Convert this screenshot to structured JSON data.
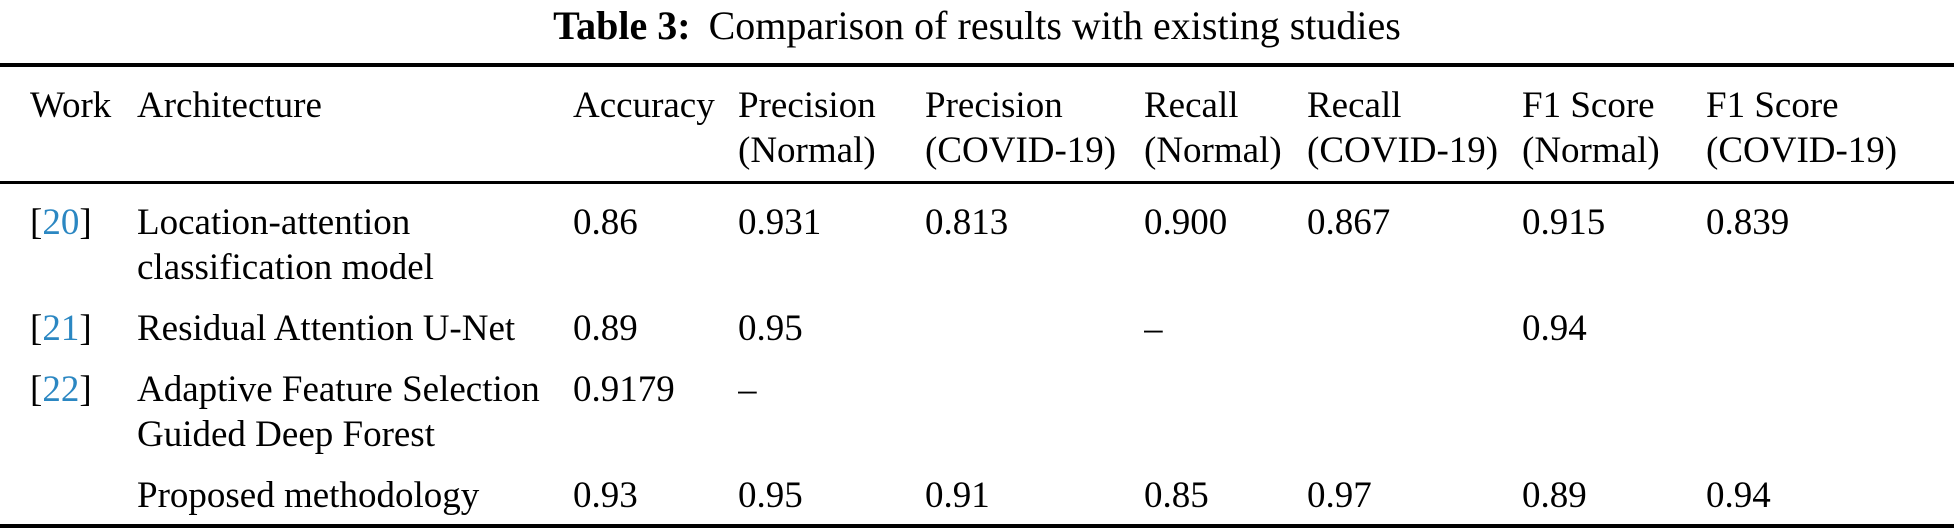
{
  "caption": {
    "label": "Table 3:",
    "text": "Comparison of results with existing studies"
  },
  "colors": {
    "background": "#ffffff",
    "text": "#000000",
    "rule": "#000000",
    "citation_link": "#2b87c2"
  },
  "table": {
    "columns": [
      {
        "label": "Work"
      },
      {
        "label": "Architecture"
      },
      {
        "label": "Accuracy"
      },
      {
        "label": "Precision\n(Normal)"
      },
      {
        "label": "Precision\n(COVID-19)"
      },
      {
        "label": "Recall\n(Normal)"
      },
      {
        "label": "Recall\n(COVID-19)"
      },
      {
        "label": "F1 Score\n(Normal)"
      },
      {
        "label": "F1 Score\n(COVID-19)"
      }
    ],
    "rows": [
      {
        "work_open": "[",
        "work_ref": "20",
        "work_close": "]",
        "architecture": "Location-attention\nclassification model",
        "accuracy": "0.86",
        "precision_normal": "0.931",
        "precision_covid19": "0.813",
        "recall_normal": "0.900",
        "recall_covid19": "0.867",
        "f1_normal": "0.915",
        "f1_covid19": "0.839"
      },
      {
        "work_open": "[",
        "work_ref": "21",
        "work_close": "]",
        "architecture": "Residual Attention U-Net",
        "accuracy": "0.89",
        "precision_normal": "0.95",
        "precision_covid19": "",
        "recall_normal": "–",
        "recall_covid19": "",
        "f1_normal": "0.94",
        "f1_covid19": ""
      },
      {
        "work_open": "[",
        "work_ref": "22",
        "work_close": "]",
        "architecture": "Adaptive Feature Selection\nGuided Deep Forest",
        "accuracy": "0.9179",
        "precision_normal": "–",
        "precision_covid19": "",
        "recall_normal": "",
        "recall_covid19": "",
        "f1_normal": "",
        "f1_covid19": ""
      },
      {
        "work_open": "",
        "work_ref": "",
        "work_close": "",
        "architecture": "Proposed methodology",
        "accuracy": "0.93",
        "precision_normal": "0.95",
        "precision_covid19": "0.91",
        "recall_normal": "0.85",
        "recall_covid19": "0.97",
        "f1_normal": "0.89",
        "f1_covid19": "0.94"
      }
    ]
  }
}
